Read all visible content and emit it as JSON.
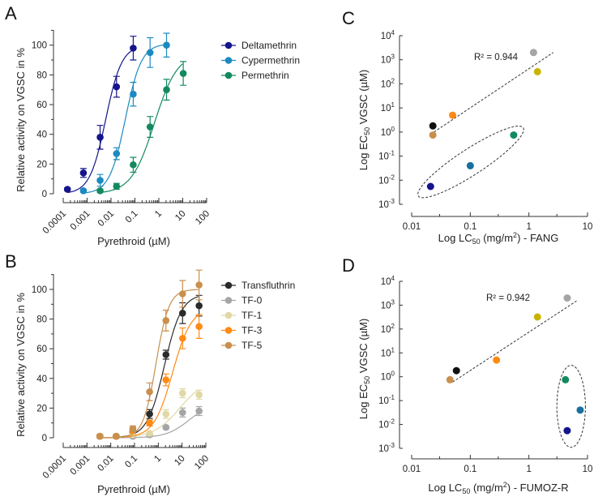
{
  "chart_data": [
    {
      "panel": "A",
      "type": "line",
      "xscale": "log",
      "xlim": [
        0.0001,
        100
      ],
      "ylim": [
        0,
        110
      ],
      "xticks": [
        "0.0001",
        "0.001",
        "0.01",
        "0.1",
        "1",
        "10",
        "100"
      ],
      "yticks": [
        "0",
        "20",
        "40",
        "60",
        "80",
        "100"
      ],
      "xlabel": "Pyrethroid (µM)",
      "ylabel": "Relative activity on VGSC in %",
      "legend": "right",
      "series": [
        {
          "name": "Deltamethrin",
          "color": "#14148c",
          "x": [
            0.00015,
            0.0007,
            0.0035,
            0.017,
            0.085
          ],
          "y": [
            3,
            14,
            38,
            72,
            98
          ],
          "err": [
            1,
            3,
            8,
            7,
            8
          ],
          "fit": {
            "ec50": 0.006,
            "top": 100,
            "hill": 1.3
          }
        },
        {
          "name": "Cypermethrin",
          "color": "#1c8ac0",
          "x": [
            0.0007,
            0.0035,
            0.017,
            0.085,
            0.43,
            2.1
          ],
          "y": [
            2,
            9,
            27,
            67,
            95,
            100
          ],
          "err": [
            1,
            4,
            4,
            8,
            10,
            8
          ],
          "fit": {
            "ec50": 0.04,
            "top": 101,
            "hill": 1.3
          }
        },
        {
          "name": "Permethrin",
          "color": "#138a5e",
          "x": [
            0.0035,
            0.017,
            0.085,
            0.43,
            2.1,
            10.5
          ],
          "y": [
            2,
            5,
            19.5,
            45,
            70,
            81
          ],
          "err": [
            1,
            2,
            5,
            7,
            7,
            8
          ],
          "fit": {
            "ec50": 0.65,
            "top": 95,
            "hill": 0.9
          }
        }
      ]
    },
    {
      "panel": "B",
      "type": "line",
      "xscale": "log",
      "xlim": [
        0.0001,
        100
      ],
      "ylim": [
        0,
        110
      ],
      "xticks": [
        "0.0001",
        "0.001",
        "0.01",
        "0.1",
        "1",
        "10",
        "100"
      ],
      "yticks": [
        "0",
        "20",
        "40",
        "60",
        "80",
        "100"
      ],
      "xlabel": "Pyrethroid (µM)",
      "ylabel": "Relative activity on VGSC in %",
      "legend": "right",
      "series": [
        {
          "name": "Transfluthrin",
          "color": "#2b2b2b",
          "x": [
            0.0035,
            0.017,
            0.085,
            0.43,
            2.1,
            10.5,
            52
          ],
          "y": [
            1,
            1,
            4,
            16,
            56,
            84,
            89
          ],
          "err": [
            1,
            1,
            2,
            3,
            3,
            7,
            7
          ],
          "fit": {
            "ec50": 1.8,
            "top": 97,
            "hill": 1.2
          }
        },
        {
          "name": "TF-0",
          "color": "#a5a5a5",
          "x": [
            0.0035,
            0.017,
            0.085,
            0.43,
            2.1,
            10.5,
            52
          ],
          "y": [
            1,
            1,
            1,
            2,
            7,
            17,
            18
          ],
          "err": [
            1,
            1,
            1,
            1,
            1,
            3,
            3
          ],
          "fit": {
            "ec50": 20,
            "top": 24,
            "hill": 0.9
          }
        },
        {
          "name": "TF-1",
          "color": "#e0d8a6",
          "x": [
            0.0035,
            0.017,
            0.085,
            0.43,
            2.1,
            10.5,
            52
          ],
          "y": [
            1,
            1,
            2,
            3,
            16,
            30,
            29
          ],
          "err": [
            1,
            1,
            1,
            1,
            3,
            3,
            3
          ],
          "fit": {
            "ec50": 8,
            "top": 40,
            "hill": 0.8
          }
        },
        {
          "name": "TF-3",
          "color": "#ff8a14",
          "x": [
            0.0035,
            0.017,
            0.085,
            0.43,
            2.1,
            10.5,
            52
          ],
          "y": [
            1,
            1,
            5,
            10,
            39,
            67,
            75
          ],
          "err": [
            1,
            1,
            2,
            2,
            4,
            7,
            8
          ],
          "fit": {
            "ec50": 4,
            "top": 88,
            "hill": 1.1
          }
        },
        {
          "name": "TF-5",
          "color": "#c98f4d",
          "x": [
            0.0035,
            0.017,
            0.085,
            0.43,
            2.1,
            10.5,
            52
          ],
          "y": [
            1,
            1,
            6,
            31,
            79,
            97,
            103
          ],
          "err": [
            1,
            1,
            2,
            6,
            7,
            9,
            10
          ],
          "fit": {
            "ec50": 0.8,
            "top": 100,
            "hill": 1.6
          }
        }
      ]
    },
    {
      "panel": "C",
      "type": "scatter",
      "xscale": "log",
      "yscale": "log",
      "xlim": [
        0.01,
        10
      ],
      "ylim": [
        0.001,
        10000
      ],
      "xticks": [
        "0.01",
        "0.1",
        "1",
        "10"
      ],
      "ytick_base": "10",
      "ytick_exponents": [
        "4",
        "3",
        "2",
        "1",
        "0",
        "-1",
        "-2",
        "-3"
      ],
      "xlabel": {
        "pre": "Log LC",
        "sub": "50",
        "mid": " (mg/m",
        "sup": "2",
        "post": ") - FANG"
      },
      "ylabel": {
        "pre": "Log EC",
        "sub": "50",
        "post": " VGSC (µM)"
      },
      "annotation": "R² = 0.944",
      "fit_line": {
        "x": [
          0.024,
          2.6
        ],
        "y": [
          1,
          2000
        ]
      },
      "ellipse": {
        "x": [
          0.013,
          0.8
        ],
        "y": [
          0.0022,
          1.5
        ]
      },
      "points": [
        {
          "color": "#111111",
          "x": 0.023,
          "y": 1.8
        },
        {
          "color": "#c98f4d",
          "x": 0.023,
          "y": 0.75
        },
        {
          "color": "#ff8a14",
          "x": 0.05,
          "y": 5
        },
        {
          "color": "#a5a5a5",
          "x": 1.2,
          "y": 2000
        },
        {
          "color": "#c8b400",
          "x": 1.4,
          "y": 320
        },
        {
          "color": "#138a5e",
          "x": 0.55,
          "y": 0.75
        },
        {
          "color": "#17709e",
          "x": 0.1,
          "y": 0.04
        },
        {
          "color": "#14148c",
          "x": 0.021,
          "y": 0.0055
        }
      ]
    },
    {
      "panel": "D",
      "type": "scatter",
      "xscale": "log",
      "yscale": "log",
      "xlim": [
        0.01,
        10
      ],
      "ylim": [
        0.001,
        10000
      ],
      "xticks": [
        "0.01",
        "0.1",
        "1",
        "10"
      ],
      "ytick_base": "10",
      "ytick_exponents": [
        "4",
        "3",
        "2",
        "1",
        "0",
        "-1",
        "-2",
        "-3"
      ],
      "xlabel": {
        "pre": "Log LC",
        "sub": "50",
        "mid": " (mg/m",
        "sup": "2",
        "post": ") - FUMOZ-R"
      },
      "ylabel": {
        "pre": "Log EC",
        "sub": "50",
        "post": " VGSC (µM)"
      },
      "annotation": "R² = 0.942",
      "fit_line": {
        "x": [
          0.05,
          6.5
        ],
        "y": [
          0.6,
          1500
        ]
      },
      "ellipse": {
        "x": [
          3,
          9.2
        ],
        "y": [
          0.0011,
          3
        ]
      },
      "points": [
        {
          "color": "#111111",
          "x": 0.058,
          "y": 1.8
        },
        {
          "color": "#c98f4d",
          "x": 0.045,
          "y": 0.75
        },
        {
          "color": "#ff8a14",
          "x": 0.28,
          "y": 5
        },
        {
          "color": "#c8b400",
          "x": 1.4,
          "y": 320
        },
        {
          "color": "#a5a5a5",
          "x": 4.5,
          "y": 2000
        },
        {
          "color": "#138a5e",
          "x": 4.2,
          "y": 0.75
        },
        {
          "color": "#17709e",
          "x": 7.5,
          "y": 0.04
        },
        {
          "color": "#14148c",
          "x": 4.5,
          "y": 0.0055
        }
      ]
    }
  ]
}
